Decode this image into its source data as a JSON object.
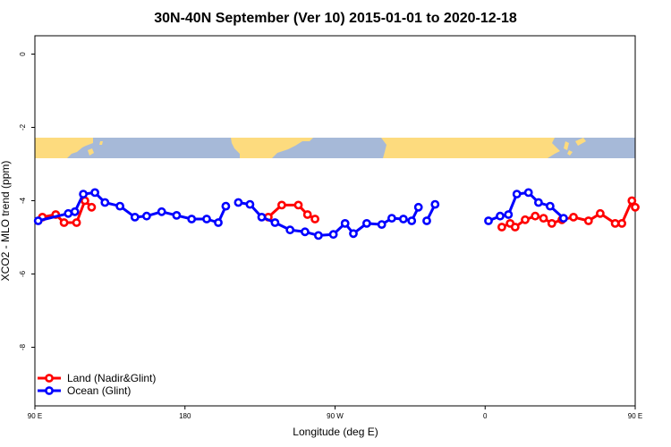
{
  "chart_data": {
    "type": "line",
    "title": "30N-40N September (Ver 10)   2015-01-01 to 2020-12-18",
    "xlabel": "Longitude (deg E)",
    "ylabel": "XCO2 - MLO trend (ppm)",
    "xlim": [
      90,
      450
    ],
    "ylim": [
      -9.6,
      0.5
    ],
    "x_ticks": [
      {
        "value": 90,
        "label": "90 E"
      },
      {
        "value": 180,
        "label": "180"
      },
      {
        "value": 270,
        "label": "90 W"
      },
      {
        "value": 360,
        "label": "0"
      },
      {
        "value": 450,
        "label": "90 E"
      },
      {
        "value": 540,
        "label": "180"
      }
    ],
    "y_ticks": [
      {
        "value": 0,
        "label": "0"
      },
      {
        "value": -2,
        "label": "-2"
      },
      {
        "value": -4,
        "label": "-4"
      },
      {
        "value": -6,
        "label": "-6"
      },
      {
        "value": -8,
        "label": "-8"
      }
    ],
    "grid": false,
    "legend_position": "bottom-left",
    "map_strip": {
      "y_top": -2.25,
      "y_bottom": -2.8,
      "ocean_color": "#a6b9d8",
      "land_color": "#fddb7e"
    },
    "series": [
      {
        "name": "Land (Nadir&Glint)",
        "color": "#ff0000",
        "segments": [
          [
            [
              94.5,
              -4.45
            ],
            [
              102.5,
              -4.38
            ],
            [
              107.5,
              -4.6
            ],
            [
              115,
              -4.6
            ],
            [
              120,
              -4.0
            ],
            [
              124,
              -4.18
            ]
          ],
          [
            [
              230,
              -4.45
            ],
            [
              238,
              -4.12
            ],
            [
              248,
              -4.12
            ],
            [
              253.5,
              -4.38
            ],
            [
              258,
              -4.5
            ]
          ],
          [
            [
              370,
              -4.72
            ],
            [
              375,
              -4.62
            ],
            [
              378,
              -4.72
            ],
            [
              384,
              -4.52
            ],
            [
              390,
              -4.42
            ],
            [
              395,
              -4.48
            ],
            [
              400,
              -4.62
            ],
            [
              406,
              -4.52
            ],
            [
              413,
              -4.45
            ],
            [
              422,
              -4.55
            ],
            [
              429,
              -4.35
            ],
            [
              438,
              -4.62
            ],
            [
              442,
              -4.62
            ],
            [
              448,
              -4.0
            ],
            [
              450,
              -4.18
            ]
          ]
        ]
      },
      {
        "name": "Ocean (Glint)",
        "color": "#0000ff",
        "segments": [
          [
            [
              92,
              -4.55
            ],
            [
              110,
              -4.35
            ],
            [
              114,
              -4.3
            ],
            [
              119,
              -3.82
            ],
            [
              126,
              -3.78
            ],
            [
              132,
              -4.05
            ],
            [
              141,
              -4.15
            ],
            [
              150,
              -4.45
            ],
            [
              157,
              -4.42
            ],
            [
              166,
              -4.3
            ],
            [
              175,
              -4.4
            ],
            [
              184,
              -4.5
            ],
            [
              193,
              -4.5
            ],
            [
              200,
              -4.6
            ],
            [
              204.5,
              -4.15
            ]
          ],
          [
            [
              212,
              -4.05
            ],
            [
              219,
              -4.1
            ],
            [
              226,
              -4.45
            ],
            [
              234,
              -4.6
            ],
            [
              243,
              -4.8
            ],
            [
              252,
              -4.85
            ],
            [
              260,
              -4.95
            ],
            [
              269,
              -4.92
            ],
            [
              276,
              -4.62
            ],
            [
              281,
              -4.9
            ],
            [
              289,
              -4.62
            ],
            [
              298,
              -4.65
            ],
            [
              304,
              -4.48
            ],
            [
              311,
              -4.5
            ],
            [
              316,
              -4.55
            ],
            [
              320,
              -4.18
            ]
          ],
          [
            [
              325,
              -4.55
            ],
            [
              330,
              -4.1
            ]
          ],
          [
            [
              362,
              -4.55
            ],
            [
              369,
              -4.42
            ],
            [
              374,
              -4.38
            ],
            [
              379,
              -3.82
            ],
            [
              386,
              -3.78
            ],
            [
              392,
              -4.05
            ],
            [
              399,
              -4.15
            ],
            [
              407,
              -4.48
            ]
          ]
        ]
      }
    ]
  }
}
